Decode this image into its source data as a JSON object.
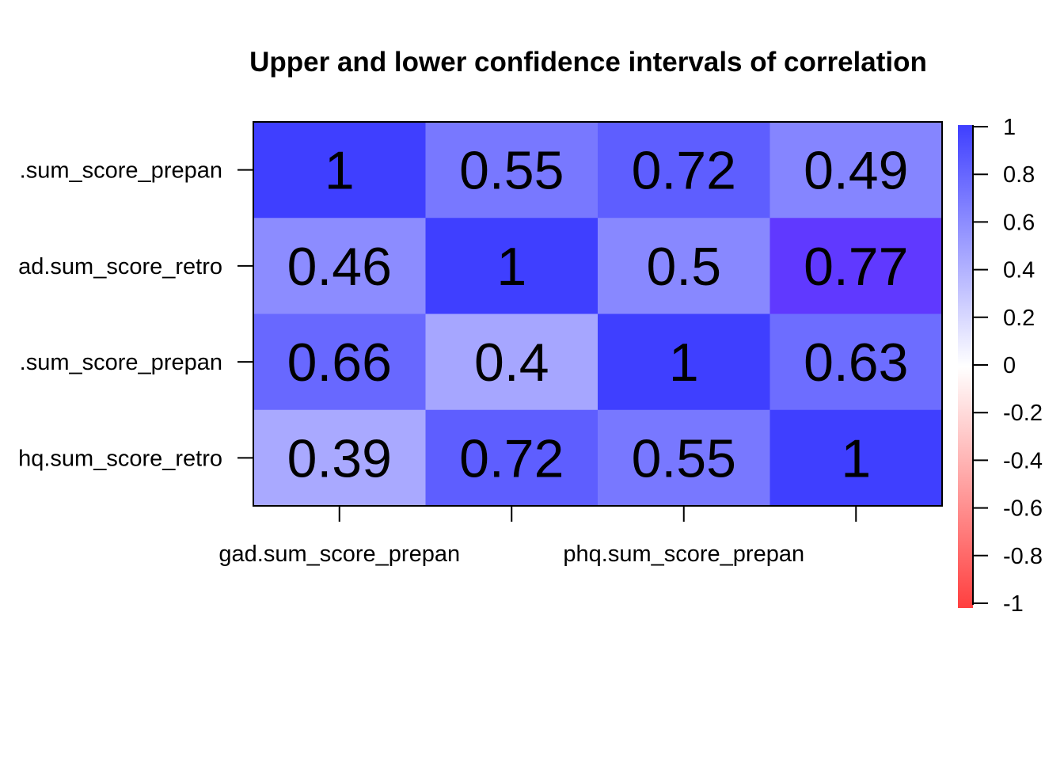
{
  "chart_data": {
    "type": "heatmap",
    "title": "Upper and lower confidence intervals of correlation",
    "row_labels": [
      ".sum_score_prepan",
      "ad.sum_score_retro",
      ".sum_score_prepan",
      "hq.sum_score_retro"
    ],
    "x_tick_labels": [
      "gad.sum_score_prepan",
      "",
      "phq.sum_score_prepan",
      ""
    ],
    "values": [
      [
        1,
        0.55,
        0.72,
        0.49
      ],
      [
        0.46,
        1,
        0.5,
        0.77
      ],
      [
        0.66,
        0.4,
        1,
        0.63
      ],
      [
        0.39,
        0.72,
        0.55,
        1
      ]
    ],
    "value_labels": [
      [
        "1",
        "0.55",
        "0.72",
        "0.49"
      ],
      [
        "0.46",
        "1",
        "0.5",
        "0.77"
      ],
      [
        "0.66",
        "0.4",
        "1",
        "0.63"
      ],
      [
        "0.39",
        "0.72",
        "0.55",
        "1"
      ]
    ],
    "cell_colors": [
      [
        "#3f3fff",
        "#7878ff",
        "#5e5eff",
        "#8585ff"
      ],
      [
        "#8c8cff",
        "#3f3fff",
        "#8888ff",
        "#6039ff"
      ],
      [
        "#6868ff",
        "#a6a6ff",
        "#3f3fff",
        "#6d6dff"
      ],
      [
        "#a9a9ff",
        "#5e5eff",
        "#7878ff",
        "#3f3fff"
      ]
    ],
    "colorbar": {
      "range": [
        -1,
        1
      ],
      "ticks": [
        "1",
        "0.8",
        "0.6",
        "0.4",
        "0.2",
        "0",
        "-0.2",
        "-0.4",
        "-0.6",
        "-0.8",
        "-1"
      ],
      "low_color": "#ff3f3f",
      "mid_color": "#ffffff",
      "high_color": "#3f3fff"
    }
  }
}
